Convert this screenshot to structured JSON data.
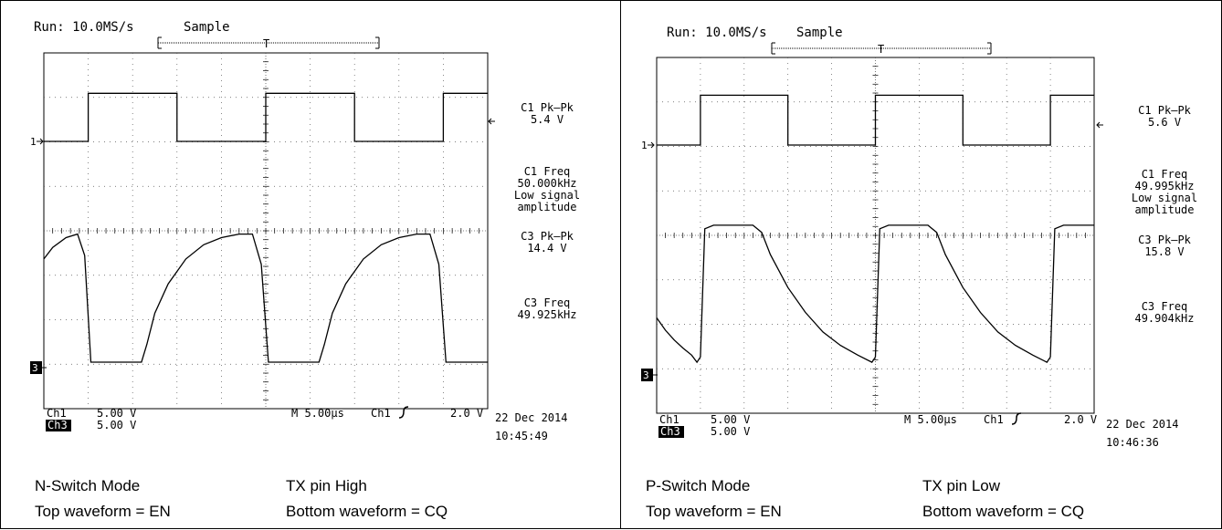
{
  "panels": [
    {
      "header": {
        "run": "Run: 10.0MS/s",
        "mode": "Sample"
      },
      "right_readout": [
        {
          "label": "C1 Pk–Pk",
          "value": "5.4 V"
        },
        {
          "label": "C1 Freq",
          "value": "50.000kHz",
          "note1": "Low signal",
          "note2": "amplitude"
        },
        {
          "label": "C3 Pk–Pk",
          "value": "14.4 V"
        },
        {
          "label": "C3 Freq",
          "value": "49.925kHz"
        }
      ],
      "markers": {
        "ch1": "1",
        "ch3": "3",
        "trigger": "T"
      },
      "bottom": {
        "ch1": "Ch1",
        "ch1_scale": "5.00 V",
        "ch3": "Ch3",
        "ch3_scale": "5.00 V",
        "timebase": "M 5.00µs",
        "trig_src": "Ch1",
        "trig_level": "2.0 V",
        "date": "22 Dec 2014",
        "time": "10:45:49"
      },
      "caption": {
        "mode": "N-Switch Mode",
        "tx": "TX pin High",
        "top": "Top waveform = EN",
        "bottom": "Bottom waveform = CQ"
      }
    },
    {
      "header": {
        "run": "Run: 10.0MS/s",
        "mode": "Sample"
      },
      "right_readout": [
        {
          "label": "C1 Pk–Pk",
          "value": "5.6 V"
        },
        {
          "label": "C1 Freq",
          "value": "49.995kHz",
          "note1": "Low signal",
          "note2": "amplitude"
        },
        {
          "label": "C3 Pk–Pk",
          "value": "15.8 V"
        },
        {
          "label": "C3 Freq",
          "value": "49.904kHz"
        }
      ],
      "markers": {
        "ch1": "1",
        "ch3": "3",
        "trigger": "T"
      },
      "bottom": {
        "ch1": "Ch1",
        "ch1_scale": "5.00 V",
        "ch3": "Ch3",
        "ch3_scale": "5.00 V",
        "timebase": "M 5.00µs",
        "trig_src": "Ch1",
        "trig_level": "2.0 V",
        "date": "22 Dec 2014",
        "time": "10:46:36"
      },
      "caption": {
        "mode": "P-Switch Mode",
        "tx": "TX pin Low",
        "top": "Top waveform = EN",
        "bottom": "Bottom waveform = CQ"
      }
    }
  ],
  "chart_data": [
    {
      "type": "line",
      "x_unit": "µs",
      "xlim": [
        -25,
        25
      ],
      "y_unit": "V",
      "grid": true,
      "series": [
        {
          "name": "Ch1",
          "points": [
            [
              -25,
              0
            ],
            [
              -20,
              0
            ],
            [
              -20,
              5.4
            ],
            [
              -10,
              5.4
            ],
            [
              -10,
              0
            ],
            [
              0,
              0
            ],
            [
              0,
              5.4
            ],
            [
              10,
              5.4
            ],
            [
              10,
              0
            ],
            [
              20,
              0
            ],
            [
              20,
              5.4
            ],
            [
              25,
              5.4
            ]
          ]
        },
        {
          "name": "Ch3",
          "points": [
            [
              -25,
              11.6
            ],
            [
              -24,
              12.9
            ],
            [
              -22.5,
              14.0
            ],
            [
              -21.2,
              14.4
            ],
            [
              -20.4,
              12.0
            ],
            [
              -19.7,
              0
            ],
            [
              -14,
              0
            ],
            [
              -13.4,
              2.0
            ],
            [
              -12.5,
              5.5
            ],
            [
              -11,
              8.8
            ],
            [
              -9,
              11.6
            ],
            [
              -7,
              13.2
            ],
            [
              -5,
              14.0
            ],
            [
              -3,
              14.4
            ],
            [
              -1.5,
              14.4
            ],
            [
              -0.5,
              11.0
            ],
            [
              0.3,
              0
            ],
            [
              6,
              0
            ],
            [
              6.6,
              2.0
            ],
            [
              7.5,
              5.5
            ],
            [
              9,
              8.8
            ],
            [
              11,
              11.6
            ],
            [
              13,
              13.2
            ],
            [
              15,
              14.0
            ],
            [
              17,
              14.4
            ],
            [
              18.5,
              14.4
            ],
            [
              19.5,
              11.0
            ],
            [
              20.3,
              0
            ],
            [
              25,
              0
            ]
          ]
        }
      ]
    },
    {
      "type": "line",
      "x_unit": "µs",
      "xlim": [
        -25,
        25
      ],
      "y_unit": "V",
      "grid": true,
      "series": [
        {
          "name": "Ch1",
          "points": [
            [
              -25,
              0
            ],
            [
              -20,
              0
            ],
            [
              -20,
              5.6
            ],
            [
              -10,
              5.6
            ],
            [
              -10,
              0
            ],
            [
              0,
              0
            ],
            [
              0,
              5.6
            ],
            [
              10,
              5.6
            ],
            [
              10,
              0
            ],
            [
              20,
              0
            ],
            [
              20,
              5.6
            ],
            [
              25,
              5.6
            ]
          ]
        },
        {
          "name": "Ch3",
          "points": [
            [
              -25,
              5.4
            ],
            [
              -24,
              4.0
            ],
            [
              -23,
              2.9
            ],
            [
              -22,
              2.0
            ],
            [
              -21,
              1.2
            ],
            [
              -20.4,
              0.4
            ],
            [
              -20,
              1.0
            ],
            [
              -19.5,
              15.4
            ],
            [
              -18.5,
              15.8
            ],
            [
              -14,
              15.8
            ],
            [
              -13,
              15.0
            ],
            [
              -12,
              12.5
            ],
            [
              -10,
              8.8
            ],
            [
              -8,
              6.0
            ],
            [
              -6,
              3.8
            ],
            [
              -4,
              2.3
            ],
            [
              -2,
              1.2
            ],
            [
              -0.4,
              0.4
            ],
            [
              0,
              1.0
            ],
            [
              0.5,
              15.4
            ],
            [
              1.5,
              15.8
            ],
            [
              6,
              15.8
            ],
            [
              7,
              15.0
            ],
            [
              8,
              12.5
            ],
            [
              10,
              8.8
            ],
            [
              12,
              6.0
            ],
            [
              14,
              3.8
            ],
            [
              16,
              2.3
            ],
            [
              18,
              1.2
            ],
            [
              19.6,
              0.4
            ],
            [
              20,
              1.0
            ],
            [
              20.5,
              15.4
            ],
            [
              21.5,
              15.8
            ],
            [
              25,
              15.8
            ]
          ]
        }
      ]
    }
  ]
}
